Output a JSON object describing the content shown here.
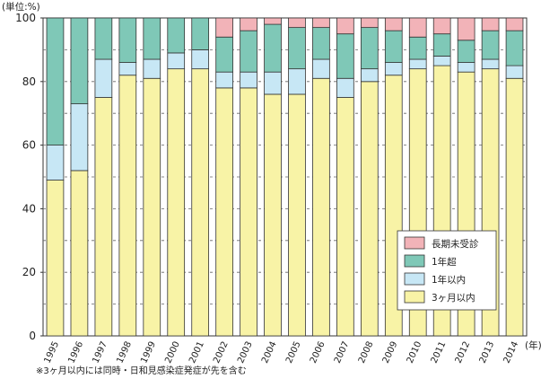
{
  "chart_data": {
    "type": "bar",
    "stacked": true,
    "unit_label": "(単位:%)",
    "x_unit_label": "(年)",
    "footnote": "※3ヶ月以内には同時・日和見感染症発症が先を含む",
    "categories": [
      "1995",
      "1996",
      "1997",
      "1998",
      "1999",
      "2000",
      "2001",
      "2002",
      "2003",
      "2004",
      "2005",
      "2006",
      "2007",
      "2008",
      "2009",
      "2010",
      "2011",
      "2012",
      "2013",
      "2014"
    ],
    "ylim": [
      0,
      100
    ],
    "yticks": [
      "0",
      "20",
      "40",
      "60",
      "80",
      "100"
    ],
    "grid": "dashed horizontal",
    "legend_position": "bottom-right",
    "series": [
      {
        "name": "3ヶ月以内",
        "color": "#f8f3a6",
        "values": [
          49,
          52,
          75,
          82,
          81,
          84,
          84,
          78,
          78,
          76,
          76,
          81,
          75,
          80,
          82,
          84,
          85,
          83,
          84,
          81
        ]
      },
      {
        "name": "1年以内",
        "color": "#c7e7f5",
        "values": [
          11,
          21,
          12,
          4,
          6,
          5,
          6,
          5,
          5,
          7,
          8,
          6,
          6,
          4,
          4,
          3,
          3,
          3,
          3,
          4
        ]
      },
      {
        "name": "1年超",
        "color": "#7fc8b7",
        "values": [
          40,
          27,
          13,
          14,
          13,
          11,
          10,
          11,
          13,
          15,
          13,
          10,
          14,
          13,
          10,
          7,
          7,
          7,
          9,
          11
        ]
      },
      {
        "name": "長期未受診",
        "color": "#f2b3b8",
        "values": [
          0,
          0,
          0,
          0,
          0,
          0,
          0,
          6,
          4,
          2,
          3,
          3,
          5,
          3,
          4,
          6,
          5,
          7,
          4,
          4
        ]
      }
    ],
    "legend_order": [
      "長期未受診",
      "1年超",
      "1年以内",
      "3ヶ月以内"
    ]
  }
}
